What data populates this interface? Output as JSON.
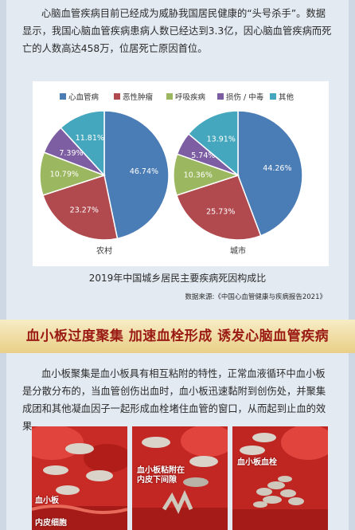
{
  "intro_paragraph": "心脑血管疾病目前已经成为威胁我国居民健康的“头号杀手”。数据显示，我国心脑血管疾病患病人数已经达到3.3亿，因心脑血管疾病而死亡的人数高达458万，位居死亡原因首位。",
  "chart_data": [
    {
      "type": "pie",
      "title": "农村",
      "categories": [
        "心血管病",
        "恶性肿瘤",
        "呼吸疾病",
        "损伤 / 中毒",
        "其他"
      ],
      "values": [
        46.74,
        23.27,
        10.79,
        7.39,
        11.81
      ],
      "labels": [
        "46.74%",
        "23.27%",
        "10.79%",
        "7.39%",
        "11.81%"
      ],
      "legend": "top"
    },
    {
      "type": "pie",
      "title": "城市",
      "categories": [
        "心血管病",
        "恶性肿瘤",
        "呼吸疾病",
        "损伤 / 中毒",
        "其他"
      ],
      "values": [
        44.26,
        25.73,
        10.36,
        5.74,
        13.91
      ],
      "labels": [
        "44.26%",
        "25.73%",
        "10.36%",
        "5.74%",
        "13.91%"
      ],
      "legend": "top"
    }
  ],
  "colors": [
    "#4a7cb5",
    "#b04a4f",
    "#9bb75f",
    "#7d5ea3",
    "#45a7bd"
  ],
  "chart_caption": "2019年中国城乡居民主要疾病死因构成比",
  "source_note": "数据来源:《中国心血管健康与疾病报告2021》",
  "section_title": "血小板过度聚集  加速血栓形成  诱发心脑血管疾病",
  "body_paragraph": "血小板聚集是血小板具有相互粘附的特性，正常血液循环中血小板是分散分布的，当血管创伤出血时，血小板迅速黏附到创伤处，并聚集成团和其他凝血因子一起形成血栓堵住血管的窗口，从而起到止血的效果。",
  "illustration_labels": {
    "platelet": "血小板",
    "endothelium": "内皮细胞",
    "adhesion": "血小板粘附在内皮下间隙",
    "thrombus": "血小板血栓"
  }
}
